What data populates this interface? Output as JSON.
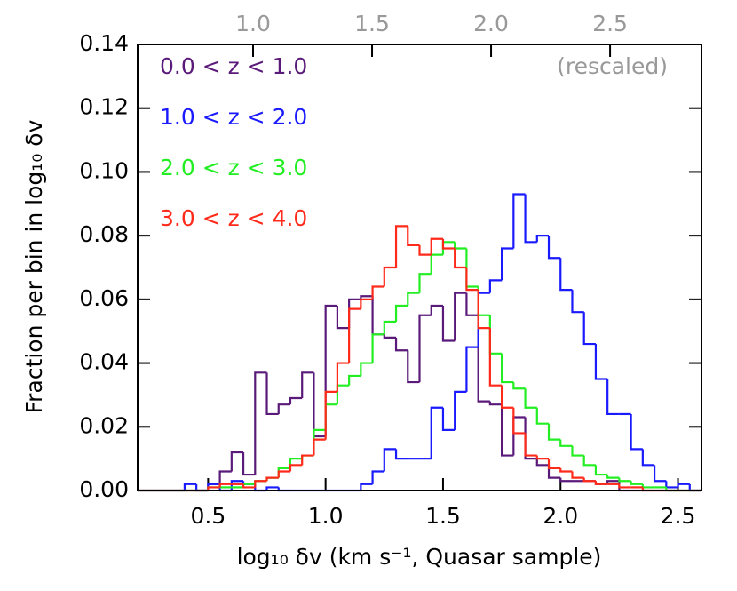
{
  "chart_data": {
    "type": "histogram",
    "xlabel": "log₁₀ δv (km s⁻¹, Quasar sample)",
    "ylabel": "Fraction per bin in log₁₀ δv",
    "annotation": "(rescaled)",
    "xlim": [
      0.2,
      2.6
    ],
    "ylim": [
      0,
      0.14
    ],
    "x2lim": [
      0.515,
      2.884
    ],
    "xticks": [
      0.5,
      {
        "value": 1,
        "label": "1.0"
      },
      1.5,
      {
        "value": 2,
        "label": "2.0"
      },
      2.5
    ],
    "x2ticks": [
      {
        "value": 1,
        "label": "1.0"
      },
      1.5,
      {
        "value": 2,
        "label": "2.0"
      },
      2.5
    ],
    "yticks": [
      {
        "value": 0,
        "label": "0.00"
      },
      {
        "value": 0.02,
        "label": "0.02"
      },
      {
        "value": 0.04,
        "label": "0.04"
      },
      {
        "value": 0.06,
        "label": "0.06"
      },
      {
        "value": 0.08,
        "label": "0.08"
      },
      {
        "value": 0.1,
        "label": "0.10"
      },
      {
        "value": 0.12,
        "label": "0.12"
      },
      {
        "value": 0.14,
        "label": "0.14"
      }
    ],
    "bins": [
      0.2,
      0.25,
      0.3,
      0.35,
      0.4,
      0.45,
      0.5,
      0.55,
      0.6,
      0.65,
      0.7,
      0.75,
      0.8,
      0.85,
      0.9,
      0.95,
      1.0,
      1.05,
      1.1,
      1.15,
      1.2,
      1.25,
      1.3,
      1.35,
      1.4,
      1.45,
      1.5,
      1.55,
      1.6,
      1.65,
      1.7,
      1.75,
      1.8,
      1.85,
      1.9,
      1.95,
      2.0,
      2.05,
      2.1,
      2.15,
      2.2,
      2.25,
      2.3,
      2.35,
      2.4,
      2.45,
      2.5,
      2.55,
      2.6
    ],
    "series": [
      {
        "name": "0.0 < z < 1.0",
        "color": "#5a1a7a",
        "values": [
          0,
          0,
          0,
          0,
          0,
          0,
          0.002,
          0.006,
          0.012,
          0.005,
          0.037,
          0.024,
          0.027,
          0.029,
          0.037,
          0.017,
          0.058,
          0.051,
          0.06,
          0.061,
          0.049,
          0.048,
          0.044,
          0.034,
          0.055,
          0.058,
          0.047,
          0.062,
          0.055,
          0.028,
          0.027,
          0.011,
          0.023,
          0.01,
          0.008,
          0.004,
          0.003,
          0.003,
          0.003,
          0.002,
          0.003,
          0,
          0,
          0,
          0,
          0,
          0,
          0
        ]
      },
      {
        "name": "1.0 < z < 2.0",
        "color": "#1a1aff",
        "values": [
          0,
          0,
          0,
          0,
          0.002,
          0,
          0.002,
          0,
          0.003,
          0.002,
          0,
          0.001,
          0,
          0,
          0,
          0,
          0,
          0,
          0,
          0.002,
          0.006,
          0.013,
          0.01,
          0.01,
          0.01,
          0.026,
          0.019,
          0.031,
          0.045,
          0.062,
          0.066,
          0.076,
          0.093,
          0.078,
          0.08,
          0.073,
          0.063,
          0.056,
          0.046,
          0.035,
          0.024,
          0.024,
          0.013,
          0.008,
          0.003,
          0.001,
          0.002,
          0
        ]
      },
      {
        "name": "2.0 < z < 3.0",
        "color": "#22ee22",
        "values": [
          0,
          0,
          0,
          0,
          0,
          0,
          0.001,
          0.001,
          0.001,
          0.002,
          0.003,
          0.004,
          0.007,
          0.01,
          0.011,
          0.019,
          0.027,
          0.033,
          0.036,
          0.04,
          0.049,
          0.053,
          0.058,
          0.062,
          0.068,
          0.074,
          0.078,
          0.076,
          0.064,
          0.055,
          0.043,
          0.034,
          0.032,
          0.026,
          0.021,
          0.016,
          0.014,
          0.011,
          0.008,
          0.005,
          0.004,
          0.003,
          0.002,
          0.001,
          0.001,
          0,
          0,
          0
        ]
      },
      {
        "name": "3.0 < z < 4.0",
        "color": "#ff2a1a",
        "values": [
          0,
          0,
          0,
          0,
          0,
          0,
          0.001,
          0.002,
          0.002,
          0.001,
          0.003,
          0.004,
          0.006,
          0.008,
          0.011,
          0.016,
          0.031,
          0.04,
          0.057,
          0.06,
          0.064,
          0.07,
          0.083,
          0.077,
          0.074,
          0.079,
          0.076,
          0.07,
          0.063,
          0.051,
          0.033,
          0.026,
          0.018,
          0.011,
          0.01,
          0.007,
          0.006,
          0.004,
          0.003,
          0.002,
          0.002,
          0.001,
          0.001,
          0,
          0,
          0,
          0,
          0
        ]
      }
    ]
  }
}
